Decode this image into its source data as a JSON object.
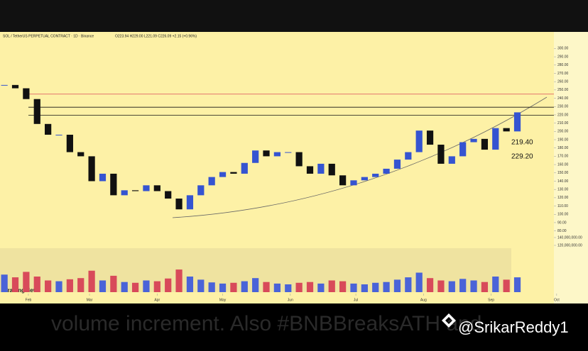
{
  "header": {
    "symbol": "SOL / TetherUS PERPETUAL CONTRACT · 1D · Binance",
    "ohlc": "O223.94 H229.00 L221.09 C226.09 +2.15 (+0.96%)",
    "logo": "TradingView"
  },
  "footer": {
    "caption": "volume increment. Also #BNBBreaksATH and",
    "handle": "@SrikarReddy1"
  },
  "chart_data": {
    "type": "candlestick",
    "x": [
      20,
      25,
      30,
      35,
      40,
      45,
      50,
      55,
      60,
      65,
      70,
      75,
      80,
      85,
      90,
      95,
      100,
      105,
      110,
      115,
      120,
      125,
      130,
      135,
      140,
      145,
      150,
      155,
      160,
      165,
      170,
      175,
      180,
      185,
      190,
      195,
      200,
      205,
      210,
      215,
      220,
      225,
      230,
      235,
      240,
      245,
      250,
      255
    ],
    "values": [
      256,
      252,
      239,
      209,
      196,
      196,
      175,
      170,
      140,
      149,
      123,
      129,
      128,
      135,
      128,
      119,
      106,
      123,
      135,
      145,
      151,
      149,
      162,
      177,
      170,
      175,
      175,
      158,
      149,
      161,
      147,
      135,
      141,
      145,
      149,
      155,
      166,
      175,
      201,
      184,
      161,
      170,
      187,
      191,
      178,
      204,
      200,
      223
    ],
    "volume": [
      45000000,
      38000000,
      52000000,
      40000000,
      30000000,
      28000000,
      33000000,
      36000000,
      55000000,
      30000000,
      42000000,
      26000000,
      24000000,
      30000000,
      28000000,
      35000000,
      58000000,
      40000000,
      32000000,
      25000000,
      22000000,
      24000000,
      28000000,
      36000000,
      26000000,
      22000000,
      20000000,
      24000000,
      26000000,
      22000000,
      30000000,
      28000000,
      22000000,
      20000000,
      24000000,
      26000000,
      32000000,
      38000000,
      50000000,
      36000000,
      30000000,
      28000000,
      34000000,
      30000000,
      26000000,
      40000000,
      32000000,
      38000000
    ],
    "up_color": "#3554d1",
    "down_color": "#111111",
    "levels": [
      {
        "value": 245,
        "color": "#e06666"
      },
      {
        "value": 229.2,
        "color": "#111111"
      },
      {
        "value": 219.4,
        "color": "#111111"
      }
    ],
    "annotations": [
      {
        "text": "219.40",
        "value": 219.4
      },
      {
        "text": "229.20",
        "value": 229.2
      }
    ],
    "xlim": [
      18,
      275
    ],
    "xticks": [
      {
        "value": 31,
        "label": "Feb"
      },
      {
        "value": 59,
        "label": "Mar"
      },
      {
        "value": 90,
        "label": "Apr"
      },
      {
        "value": 120,
        "label": "May"
      },
      {
        "value": 151,
        "label": "Jun"
      },
      {
        "value": 181,
        "label": "Jul"
      },
      {
        "value": 212,
        "label": "Aug"
      },
      {
        "value": 243,
        "label": "Sep"
      },
      {
        "value": 273,
        "label": "Oct"
      }
    ],
    "ylim": [
      75,
      320
    ],
    "yticks": [
      {
        "value": 80,
        "label": "80.00"
      },
      {
        "value": 90,
        "label": "90.00"
      },
      {
        "value": 100,
        "label": "100.00"
      },
      {
        "value": 110,
        "label": "110.00"
      },
      {
        "value": 120,
        "label": "120.00"
      },
      {
        "value": 130,
        "label": "130.00"
      },
      {
        "value": 140,
        "label": "140.00"
      },
      {
        "value": 150,
        "label": "150.00"
      },
      {
        "value": 160,
        "label": "160.00"
      },
      {
        "value": 170,
        "label": "170.00"
      },
      {
        "value": 180,
        "label": "180.00"
      },
      {
        "value": 190,
        "label": "190.00"
      },
      {
        "value": 200,
        "label": "200.00"
      },
      {
        "value": 210,
        "label": "210.00"
      },
      {
        "value": 220,
        "label": "220.00"
      },
      {
        "value": 230,
        "label": "230.00"
      },
      {
        "value": 240,
        "label": "240.00"
      },
      {
        "value": 250,
        "label": "250.00"
      },
      {
        "value": 260,
        "label": "260.00"
      },
      {
        "value": 270,
        "label": "270.00"
      },
      {
        "value": 280,
        "label": "280.00"
      },
      {
        "value": 290,
        "label": "290.00"
      },
      {
        "value": 300,
        "label": "300.00"
      }
    ],
    "y2lim": [
      0,
      140000000
    ],
    "y2ticks": [
      {
        "value": 120000000,
        "label": "120,000,000.00"
      },
      {
        "value": 140000000,
        "label": "140,000,000.00"
      }
    ]
  }
}
